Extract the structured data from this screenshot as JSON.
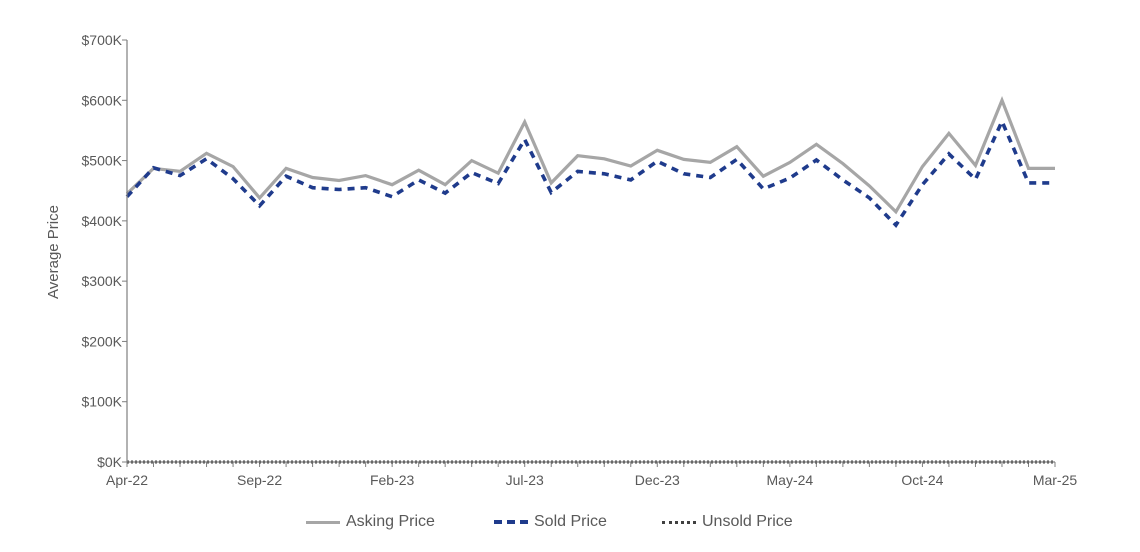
{
  "chart_data": {
    "type": "line",
    "title": "",
    "xlabel": "",
    "ylabel": "Average Price",
    "ylim": [
      0,
      700000
    ],
    "yticks": [
      "$0K",
      "$100K",
      "$200K",
      "$300K",
      "$400K",
      "$500K",
      "$600K",
      "$700K"
    ],
    "x": [
      "Apr-22",
      "May-22",
      "Jun-22",
      "Jul-22",
      "Aug-22",
      "Sep-22",
      "Oct-22",
      "Nov-22",
      "Dec-22",
      "Jan-23",
      "Feb-23",
      "Mar-23",
      "Apr-23",
      "May-23",
      "Jun-23",
      "Jul-23",
      "Aug-23",
      "Sep-23",
      "Oct-23",
      "Nov-23",
      "Dec-23",
      "Jan-24",
      "Feb-24",
      "Mar-24",
      "Apr-24",
      "May-24",
      "Jun-24",
      "Jul-24",
      "Aug-24",
      "Sep-24",
      "Oct-24",
      "Nov-24",
      "Dec-24",
      "Jan-25",
      "Feb-25",
      "Mar-25"
    ],
    "xtick_labels": [
      "Apr-22",
      "Sep-22",
      "Feb-23",
      "Jul-23",
      "Dec-23",
      "May-24",
      "Oct-24",
      "Mar-25"
    ],
    "grid": false,
    "legend_position": "bottom",
    "series": [
      {
        "name": "Asking Price",
        "color": "#a6a6a6",
        "style": "solid",
        "values": [
          445000,
          487000,
          482000,
          512000,
          490000,
          438000,
          487000,
          472000,
          467000,
          475000,
          460000,
          484000,
          460000,
          500000,
          479000,
          564000,
          463000,
          508000,
          503000,
          491000,
          517000,
          502000,
          497000,
          523000,
          474000,
          497000,
          527000,
          495000,
          458000,
          415000,
          490000,
          545000,
          492000,
          600000,
          487000,
          487000
        ]
      },
      {
        "name": "Sold Price",
        "color": "#1f3b8c",
        "style": "dashed",
        "values": [
          440000,
          488000,
          475000,
          503000,
          470000,
          425000,
          474000,
          455000,
          452000,
          455000,
          440000,
          468000,
          446000,
          480000,
          462000,
          535000,
          447000,
          482000,
          478000,
          468000,
          499000,
          478000,
          472000,
          502000,
          453000,
          471000,
          501000,
          468000,
          438000,
          393000,
          460000,
          511000,
          469000,
          565000,
          463000,
          463000
        ]
      },
      {
        "name": "Unsold Price",
        "color": "#404040",
        "style": "dotted",
        "values": [
          0,
          0,
          0,
          0,
          0,
          0,
          0,
          0,
          0,
          0,
          0,
          0,
          0,
          0,
          0,
          0,
          0,
          0,
          0,
          0,
          0,
          0,
          0,
          0,
          0,
          0,
          0,
          0,
          0,
          0,
          0,
          0,
          0,
          0,
          0,
          0
        ]
      }
    ]
  }
}
